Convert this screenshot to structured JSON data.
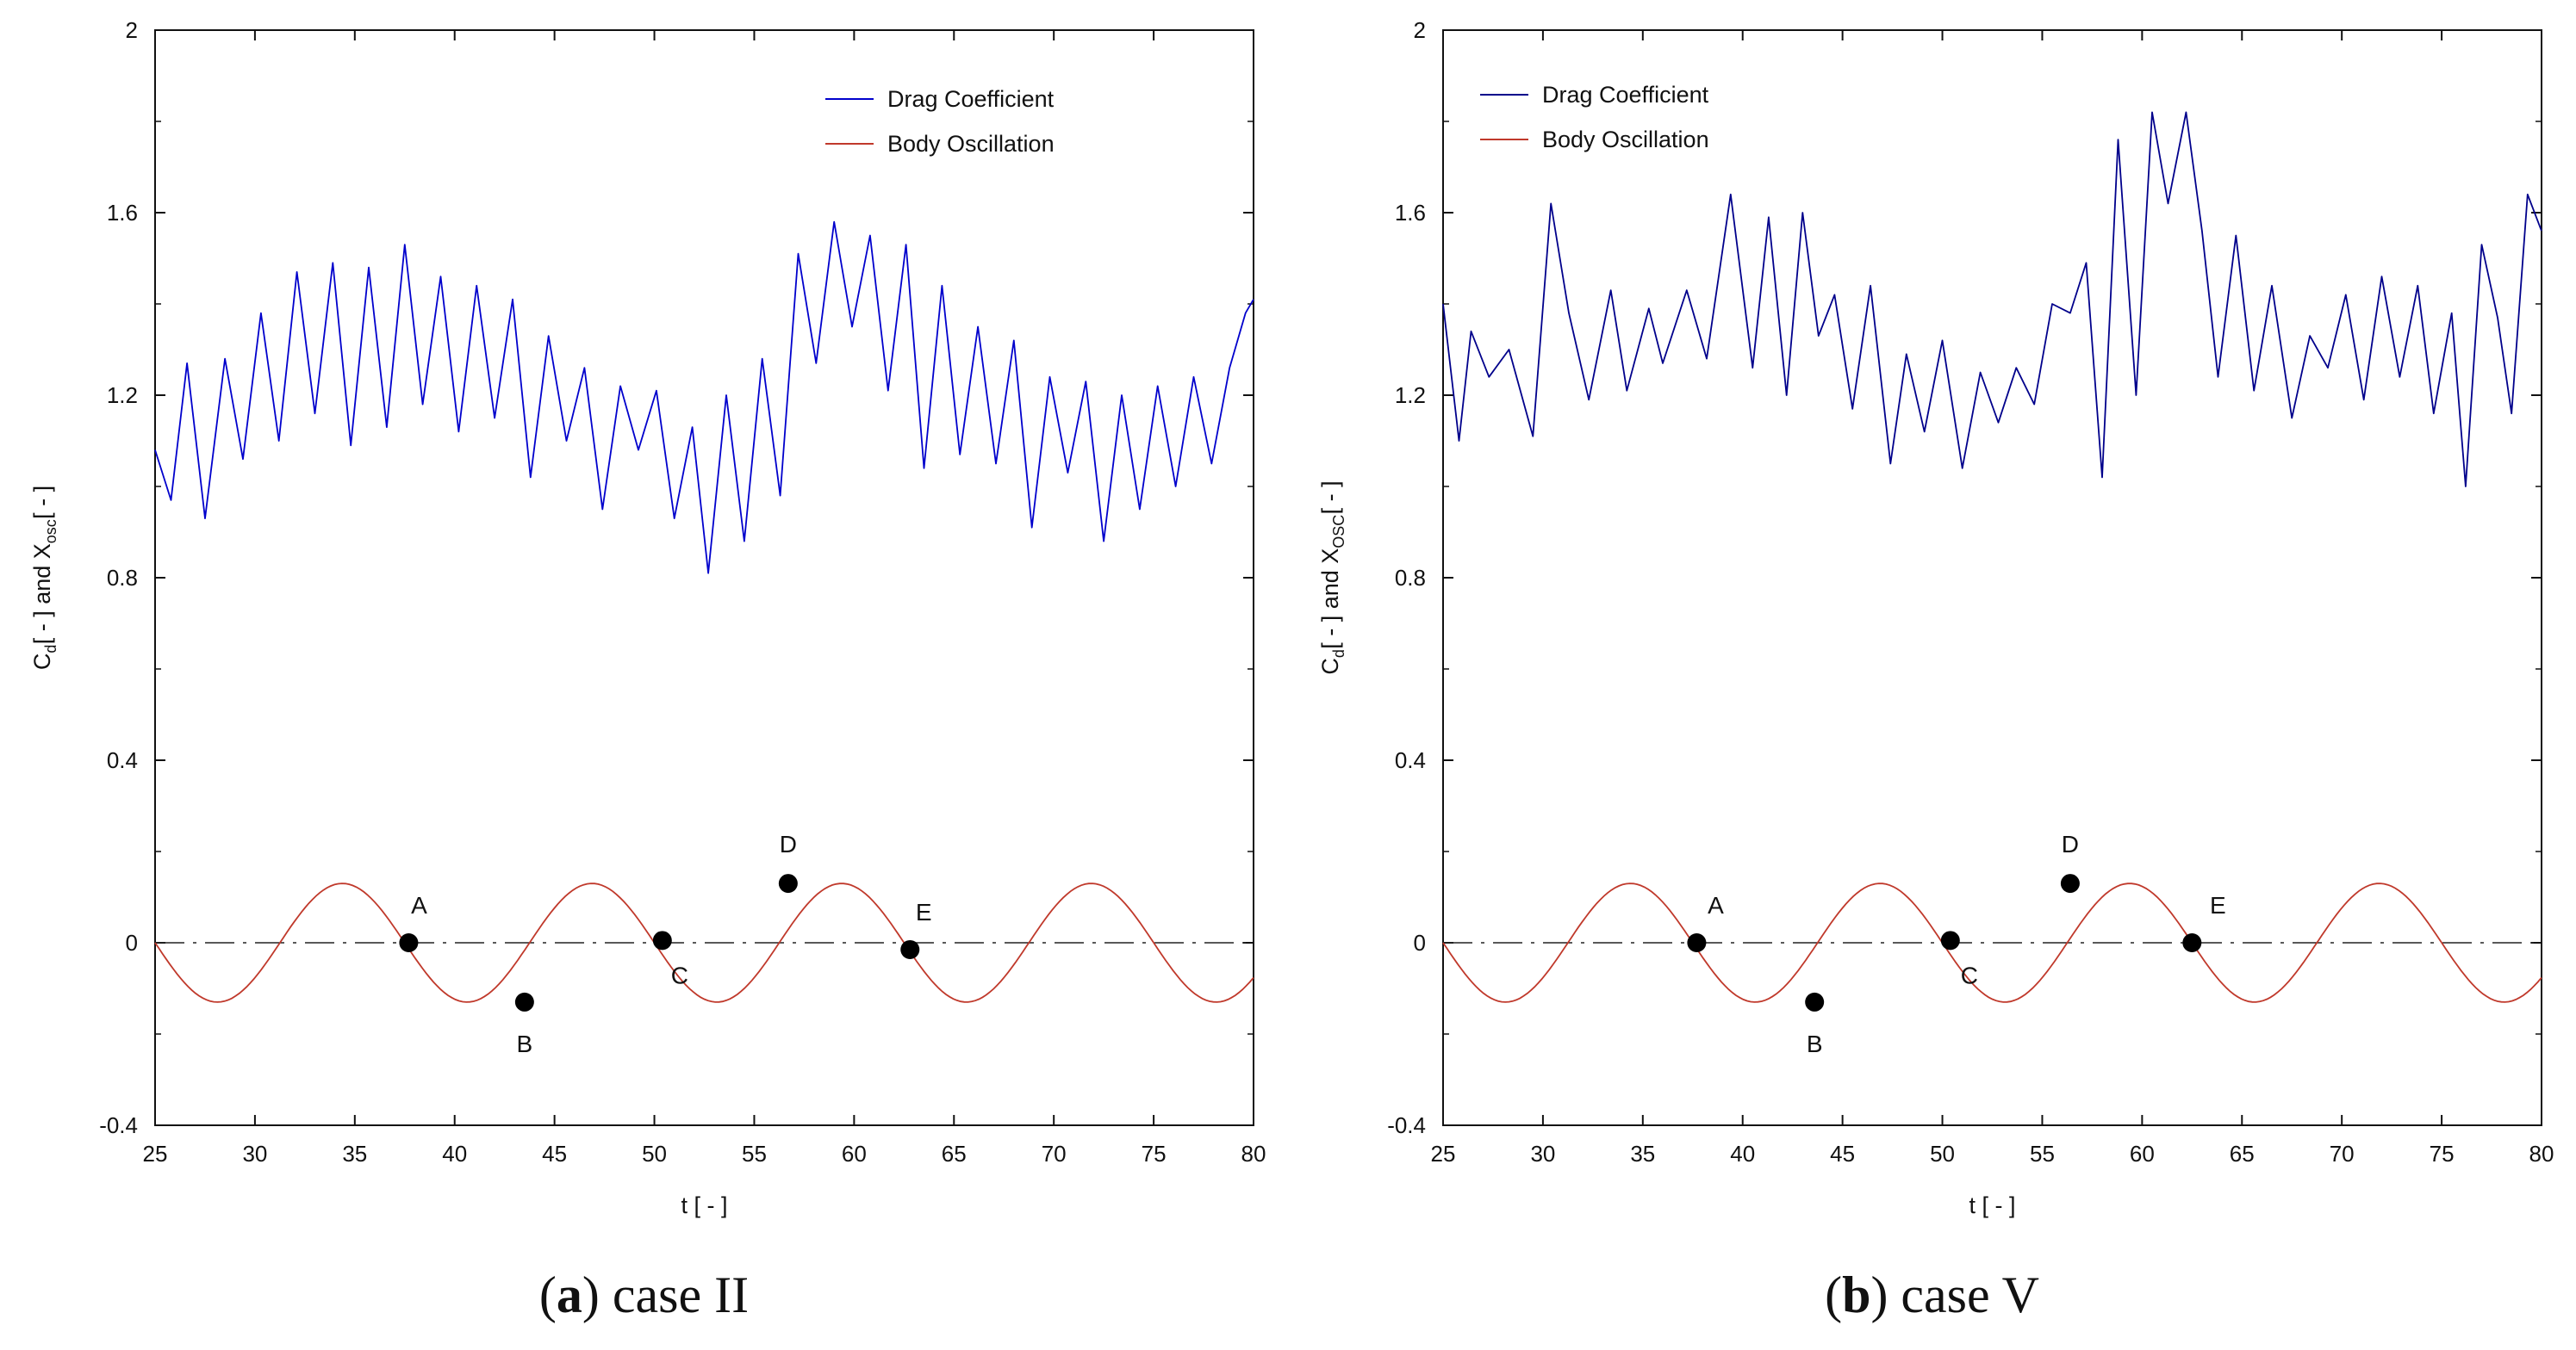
{
  "chart_data": [
    {
      "type": "line",
      "caption": {
        "id": "a",
        "text": "case II"
      },
      "xlabel": "t [ - ]",
      "ylabel": {
        "c": "C",
        "d": "d",
        "mid": " [ - ] and X",
        "osc": "osc",
        "end": " [ - ]"
      },
      "xlim": [
        25,
        80
      ],
      "ylim": [
        -0.4,
        2
      ],
      "xticks": [
        25,
        30,
        35,
        40,
        45,
        50,
        55,
        60,
        65,
        70,
        75,
        80
      ],
      "yticks": [
        -0.4,
        0,
        0.4,
        0.8,
        1.2,
        1.6,
        2
      ],
      "ytick_labels": [
        "-0.4",
        "0",
        "0.4",
        "0.8",
        "1.2",
        "1.6",
        "2"
      ],
      "legend_position": "top-right",
      "series": [
        {
          "name": "Drag Coefficient",
          "color": "#0000cc",
          "x": [
            25,
            25.8,
            26.6,
            27.5,
            28.5,
            29.4,
            30.3,
            31.2,
            32.1,
            33.0,
            33.9,
            34.8,
            35.7,
            36.6,
            37.5,
            38.4,
            39.3,
            40.2,
            41.1,
            42.0,
            42.9,
            43.8,
            44.7,
            45.6,
            46.5,
            47.4,
            48.3,
            49.2,
            50.1,
            51.0,
            51.9,
            52.7,
            53.6,
            54.5,
            55.4,
            56.3,
            57.2,
            58.1,
            59.0,
            59.9,
            60.8,
            61.7,
            62.6,
            63.5,
            64.4,
            65.3,
            66.2,
            67.1,
            68.0,
            68.9,
            69.8,
            70.7,
            71.6,
            72.5,
            73.4,
            74.3,
            75.2,
            76.1,
            77.0,
            77.9,
            78.8,
            79.6,
            80
          ],
          "y": [
            1.08,
            0.97,
            1.27,
            0.93,
            1.28,
            1.06,
            1.38,
            1.1,
            1.47,
            1.16,
            1.49,
            1.09,
            1.48,
            1.13,
            1.53,
            1.18,
            1.46,
            1.12,
            1.44,
            1.15,
            1.41,
            1.02,
            1.33,
            1.1,
            1.26,
            0.95,
            1.22,
            1.08,
            1.21,
            0.93,
            1.13,
            0.81,
            1.2,
            0.88,
            1.28,
            0.98,
            1.51,
            1.27,
            1.58,
            1.35,
            1.55,
            1.21,
            1.53,
            1.04,
            1.44,
            1.07,
            1.35,
            1.05,
            1.32,
            0.91,
            1.24,
            1.03,
            1.23,
            0.88,
            1.2,
            0.95,
            1.22,
            1.0,
            1.24,
            1.05,
            1.26,
            1.38,
            1.41
          ]
        },
        {
          "name": "Body Oscillation",
          "color": "#c0392b",
          "amplitude": 0.13,
          "period": 12.5,
          "phase_zero": 37.5
        }
      ],
      "points": [
        {
          "label": "A",
          "x": 37.7,
          "y": 0
        },
        {
          "label": "B",
          "x": 43.5,
          "y": -0.13
        },
        {
          "label": "C",
          "x": 50.4,
          "y": 0.005
        },
        {
          "label": "D",
          "x": 56.7,
          "y": 0.13
        },
        {
          "label": "E",
          "x": 62.8,
          "y": -0.015
        }
      ]
    },
    {
      "type": "line",
      "caption": {
        "id": "b",
        "text": "case V"
      },
      "xlabel": "t [ - ]",
      "ylabel": {
        "c": "C",
        "d": "d",
        "mid": " [ - ] and X",
        "osc": "OSC",
        "end": " [ - ]"
      },
      "xlim": [
        25,
        80
      ],
      "ylim": [
        -0.4,
        2
      ],
      "xticks": [
        25,
        30,
        35,
        40,
        45,
        50,
        55,
        60,
        65,
        70,
        75,
        80
      ],
      "yticks": [
        -0.4,
        0,
        0.4,
        0.8,
        1.2,
        1.6,
        2
      ],
      "ytick_labels": [
        "-0.4",
        "0",
        "0.4",
        "0.8",
        "1.2",
        "1.6",
        "2"
      ],
      "legend_position": "top-left",
      "series": [
        {
          "name": "Drag Coefficient",
          "color": "#00008b",
          "x": [
            25,
            25.8,
            26.4,
            27.3,
            28.3,
            29.5,
            30.4,
            31.3,
            32.3,
            33.4,
            34.2,
            35.3,
            36.0,
            37.2,
            38.2,
            39.4,
            40.5,
            41.3,
            42.2,
            43.0,
            43.8,
            44.6,
            45.5,
            46.4,
            47.4,
            48.2,
            49.1,
            50.0,
            51.0,
            51.9,
            52.8,
            53.7,
            54.6,
            55.5,
            56.4,
            57.2,
            58.0,
            58.8,
            59.7,
            60.5,
            61.3,
            62.2,
            63.0,
            63.8,
            64.7,
            65.6,
            66.5,
            67.5,
            68.4,
            69.3,
            70.2,
            71.1,
            72.0,
            72.9,
            73.8,
            74.6,
            75.5,
            76.2,
            77.0,
            77.8,
            78.5,
            79.3,
            80
          ],
          "y": [
            1.4,
            1.1,
            1.34,
            1.24,
            1.3,
            1.11,
            1.62,
            1.38,
            1.19,
            1.43,
            1.21,
            1.39,
            1.27,
            1.43,
            1.28,
            1.64,
            1.26,
            1.59,
            1.2,
            1.6,
            1.33,
            1.42,
            1.17,
            1.44,
            1.05,
            1.29,
            1.12,
            1.32,
            1.04,
            1.25,
            1.14,
            1.26,
            1.18,
            1.4,
            1.38,
            1.49,
            1.02,
            1.76,
            1.2,
            1.82,
            1.62,
            1.82,
            1.56,
            1.24,
            1.55,
            1.21,
            1.44,
            1.15,
            1.33,
            1.26,
            1.42,
            1.19,
            1.46,
            1.24,
            1.44,
            1.16,
            1.38,
            1.0,
            1.53,
            1.37,
            1.16,
            1.64,
            1.56
          ]
        },
        {
          "name": "Body Oscillation",
          "color": "#c0392b",
          "amplitude": 0.13,
          "period": 12.5,
          "phase_zero": 37.5
        }
      ],
      "points": [
        {
          "label": "A",
          "x": 37.7,
          "y": 0
        },
        {
          "label": "B",
          "x": 43.6,
          "y": -0.13
        },
        {
          "label": "C",
          "x": 50.4,
          "y": 0.005
        },
        {
          "label": "D",
          "x": 56.4,
          "y": 0.13
        },
        {
          "label": "E",
          "x": 62.5,
          "y": 0
        }
      ]
    }
  ]
}
